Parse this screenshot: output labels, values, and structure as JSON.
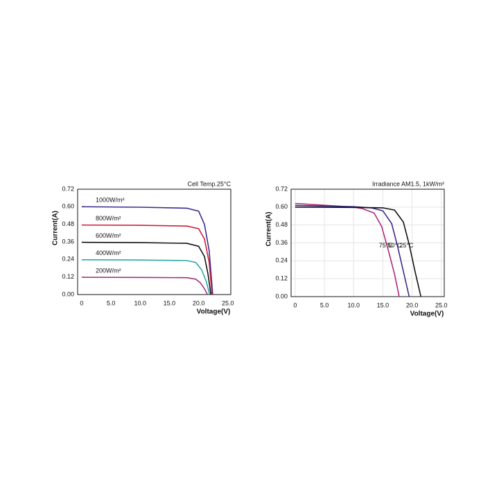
{
  "chart_data": [
    {
      "type": "line",
      "title": "Cell Temp.25°C",
      "xlabel": "Voltage(V)",
      "ylabel": "Current(A)",
      "xlim": [
        -0.7,
        25.5
      ],
      "ylim": [
        0,
        0.72
      ],
      "xticks": [
        0,
        {
          "value": 5,
          "label": "5.0"
        },
        {
          "value": 10,
          "label": "10.0"
        },
        {
          "value": 15,
          "label": "15.0"
        },
        {
          "value": 20,
          "label": "20.0"
        },
        {
          "value": 25,
          "label": "25.0"
        }
      ],
      "yticks": [
        {
          "value": 0,
          "label": "0.00"
        },
        {
          "value": 0.12,
          "label": "0.12"
        },
        {
          "value": 0.24,
          "label": "0.24"
        },
        {
          "value": 0.36,
          "label": "0.36"
        },
        {
          "value": 0.48,
          "label": "0.48"
        },
        {
          "value": 0.6,
          "label": "0.60"
        },
        {
          "value": 0.72,
          "label": "0.72"
        }
      ],
      "grid": false,
      "series": [
        {
          "name": "1000W/m²",
          "color": "#3b2a8c",
          "x": [
            0,
            10,
            18,
            20,
            21,
            21.8,
            22.4
          ],
          "values": [
            0.6,
            0.597,
            0.59,
            0.57,
            0.48,
            0.3,
            0
          ]
        },
        {
          "name": "800W/m²",
          "color": "#cc1f3a",
          "x": [
            0,
            10,
            18,
            20,
            21,
            21.8,
            22.3
          ],
          "values": [
            0.475,
            0.473,
            0.468,
            0.45,
            0.38,
            0.22,
            0
          ]
        },
        {
          "name": "600W/m²",
          "color": "#111111",
          "x": [
            0,
            10,
            18,
            20,
            21,
            21.6,
            22.1
          ],
          "values": [
            0.357,
            0.355,
            0.35,
            0.33,
            0.26,
            0.14,
            0
          ]
        },
        {
          "name": "400W/m²",
          "color": "#2aa6a6",
          "x": [
            0,
            10,
            18,
            19.5,
            20.5,
            21.3,
            21.9
          ],
          "values": [
            0.238,
            0.236,
            0.232,
            0.22,
            0.17,
            0.09,
            0
          ]
        },
        {
          "name": "200W/m²",
          "color": "#a0307a",
          "x": [
            0,
            10,
            18,
            19.5,
            20.3,
            21,
            21.5
          ],
          "values": [
            0.118,
            0.117,
            0.115,
            0.105,
            0.08,
            0.04,
            0
          ]
        }
      ]
    },
    {
      "type": "line",
      "title": "Irradiance AM1.5, 1kW/m²",
      "xlabel": "Voltage(V)",
      "ylabel": "Current(A)",
      "xlim": [
        -0.7,
        25.5
      ],
      "ylim": [
        0,
        0.72
      ],
      "xticks": [
        0,
        {
          "value": 5,
          "label": "5.0"
        },
        {
          "value": 10,
          "label": "10.0"
        },
        {
          "value": 15,
          "label": "15.0"
        },
        {
          "value": 20,
          "label": "20.0"
        },
        {
          "value": 25,
          "label": "25.0"
        }
      ],
      "yticks": [
        {
          "value": 0,
          "label": "0.00"
        },
        {
          "value": 0.12,
          "label": "0.12"
        },
        {
          "value": 0.24,
          "label": "0.24"
        },
        {
          "value": 0.36,
          "label": "0.36"
        },
        {
          "value": 0.48,
          "label": "0.48"
        },
        {
          "value": 0.6,
          "label": "0.60"
        },
        {
          "value": 0.72,
          "label": "0.72"
        }
      ],
      "grid": true,
      "series": [
        {
          "name": "75°C",
          "color": "#b0287a",
          "x": [
            0,
            10,
            11.5,
            13.5,
            14.8,
            16,
            17,
            17.8
          ],
          "values": [
            0.625,
            0.6,
            0.59,
            0.56,
            0.47,
            0.3,
            0.15,
            0
          ]
        },
        {
          "name": "50°C",
          "color": "#3b2a8c",
          "x": [
            0,
            10,
            13,
            15,
            16.5,
            17.5,
            18.5,
            19.5
          ],
          "values": [
            0.612,
            0.603,
            0.595,
            0.575,
            0.49,
            0.34,
            0.17,
            0
          ]
        },
        {
          "name": "25°C",
          "color": "#111111",
          "x": [
            0,
            10,
            15,
            17,
            18.5,
            19.5,
            20.5,
            21.5
          ],
          "values": [
            0.6,
            0.598,
            0.595,
            0.58,
            0.5,
            0.35,
            0.17,
            0
          ]
        }
      ]
    }
  ]
}
